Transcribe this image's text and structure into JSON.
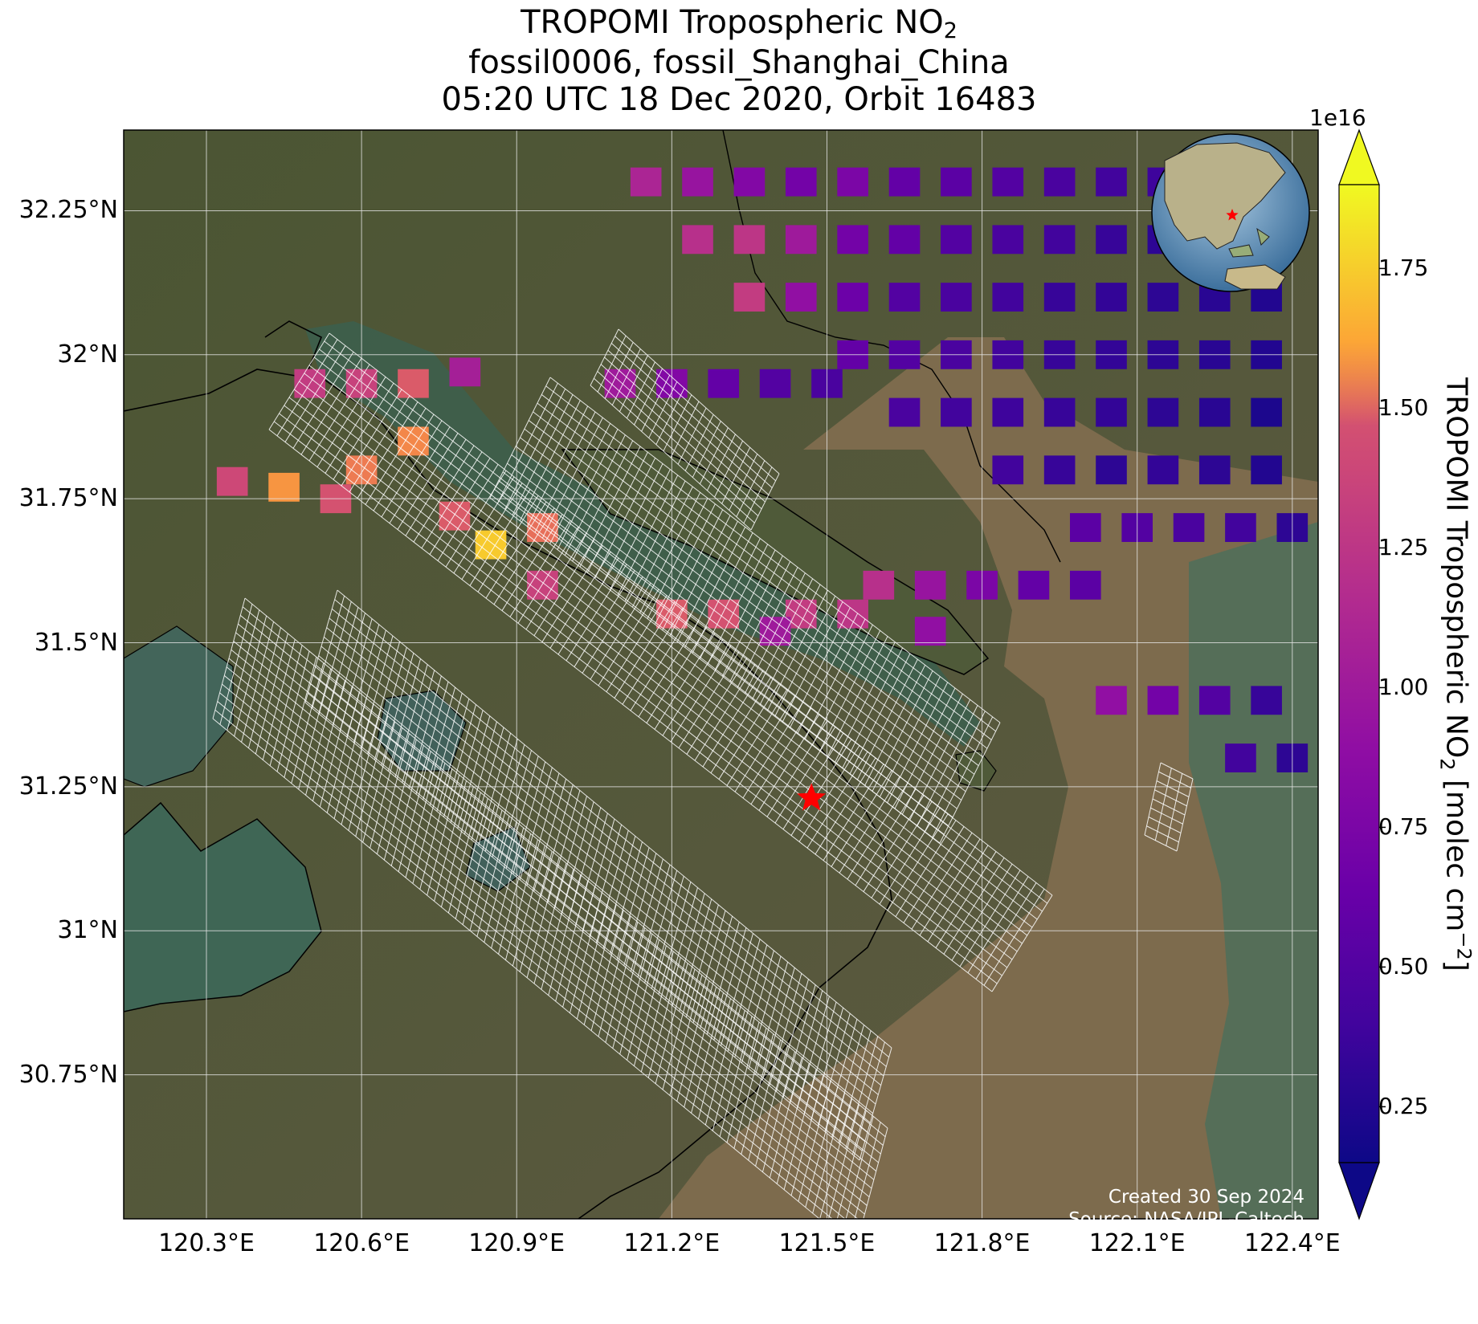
{
  "title": {
    "product": "TROPOMI Tropospheric NO",
    "product_sub": "2",
    "site": "fossil0006, fossil_Shanghai_China",
    "time": "05:20 UTC 18 Dec 2020, Orbit 16483"
  },
  "axes": {
    "lat_ticks": [
      {
        "value": 32.25,
        "label": "32.25°N"
      },
      {
        "value": 32.0,
        "label": "32°N"
      },
      {
        "value": 31.75,
        "label": "31.75°N"
      },
      {
        "value": 31.5,
        "label": "31.5°N"
      },
      {
        "value": 31.25,
        "label": "31.25°N"
      },
      {
        "value": 31.0,
        "label": "31°N"
      },
      {
        "value": 30.75,
        "label": "30.75°N"
      }
    ],
    "lon_ticks": [
      {
        "value": 120.3,
        "label": "120.3°E"
      },
      {
        "value": 120.6,
        "label": "120.6°E"
      },
      {
        "value": 120.9,
        "label": "120.9°E"
      },
      {
        "value": 121.2,
        "label": "121.2°E"
      },
      {
        "value": 121.5,
        "label": "121.5°E"
      },
      {
        "value": 121.8,
        "label": "121.8°E"
      },
      {
        "value": 122.1,
        "label": "122.1°E"
      },
      {
        "value": 122.4,
        "label": "122.4°E"
      }
    ],
    "lat_range": [
      30.5,
      32.4
    ],
    "lon_range": [
      120.2,
      122.45
    ],
    "grid": true
  },
  "colorbar": {
    "multiplier": "1e16",
    "label_main": "TROPOMI Tropospheric NO",
    "label_sub": "2",
    "label_units": " [molec cm",
    "label_sup": "−2",
    "label_end": "]",
    "ticks": [
      {
        "value": 0.25,
        "label": "0.25"
      },
      {
        "value": 0.5,
        "label": "0.50"
      },
      {
        "value": 0.75,
        "label": "0.75"
      },
      {
        "value": 1.0,
        "label": "1.00"
      },
      {
        "value": 1.25,
        "label": "1.25"
      },
      {
        "value": 1.5,
        "label": "1.50"
      },
      {
        "value": 1.75,
        "label": "1.75"
      }
    ],
    "range": [
      0.15,
      1.9
    ],
    "colormap": "plasma",
    "extend": "both"
  },
  "target": {
    "lat": 31.23,
    "lon": 121.47,
    "color": "#ff0000",
    "icon": "star-icon"
  },
  "inset_globe": {
    "center_lat": 31.23,
    "center_lon": 121.47,
    "marker_color": "#ff0000"
  },
  "credits": {
    "created": "Created 30 Sep 2024",
    "source": "Source: NASA/JPL-Caltech"
  },
  "colors": {
    "land": "#4a5230",
    "water": "#3f6655",
    "estuary": "#7c6a4c",
    "grid": "#e6e6e6",
    "target_grid": "#ffffff"
  },
  "chart_data": {
    "type": "heatmap",
    "title": "TROPOMI Tropospheric NO2",
    "xlabel": "",
    "ylabel": "",
    "units": "molec cm-2 (x1e16)",
    "cells": [
      {
        "lat": 32.3,
        "lon": 121.15,
        "value": 1.1
      },
      {
        "lat": 32.3,
        "lon": 121.25,
        "value": 0.95
      },
      {
        "lat": 32.3,
        "lon": 121.35,
        "value": 0.8
      },
      {
        "lat": 32.3,
        "lon": 121.45,
        "value": 0.7
      },
      {
        "lat": 32.3,
        "lon": 121.55,
        "value": 0.75
      },
      {
        "lat": 32.3,
        "lon": 121.65,
        "value": 0.6
      },
      {
        "lat": 32.3,
        "lon": 121.75,
        "value": 0.55
      },
      {
        "lat": 32.3,
        "lon": 121.85,
        "value": 0.5
      },
      {
        "lat": 32.3,
        "lon": 121.95,
        "value": 0.45
      },
      {
        "lat": 32.3,
        "lon": 122.05,
        "value": 0.4
      },
      {
        "lat": 32.3,
        "lon": 122.15,
        "value": 0.38
      },
      {
        "lat": 32.3,
        "lon": 122.25,
        "value": 0.35
      },
      {
        "lat": 32.2,
        "lon": 121.25,
        "value": 1.2
      },
      {
        "lat": 32.2,
        "lon": 121.35,
        "value": 1.25
      },
      {
        "lat": 32.2,
        "lon": 121.45,
        "value": 1.0
      },
      {
        "lat": 32.2,
        "lon": 121.55,
        "value": 0.7
      },
      {
        "lat": 32.2,
        "lon": 121.65,
        "value": 0.6
      },
      {
        "lat": 32.2,
        "lon": 121.75,
        "value": 0.5
      },
      {
        "lat": 32.2,
        "lon": 121.85,
        "value": 0.45
      },
      {
        "lat": 32.2,
        "lon": 121.95,
        "value": 0.4
      },
      {
        "lat": 32.2,
        "lon": 122.05,
        "value": 0.35
      },
      {
        "lat": 32.2,
        "lon": 122.15,
        "value": 0.3
      },
      {
        "lat": 32.2,
        "lon": 122.25,
        "value": 0.33
      },
      {
        "lat": 32.2,
        "lon": 122.35,
        "value": 0.3
      },
      {
        "lat": 32.1,
        "lon": 121.35,
        "value": 1.3
      },
      {
        "lat": 32.1,
        "lon": 121.45,
        "value": 0.9
      },
      {
        "lat": 32.1,
        "lon": 121.55,
        "value": 0.65
      },
      {
        "lat": 32.1,
        "lon": 121.65,
        "value": 0.5
      },
      {
        "lat": 32.1,
        "lon": 121.75,
        "value": 0.45
      },
      {
        "lat": 32.1,
        "lon": 121.85,
        "value": 0.4
      },
      {
        "lat": 32.1,
        "lon": 121.95,
        "value": 0.35
      },
      {
        "lat": 32.1,
        "lon": 122.05,
        "value": 0.33
      },
      {
        "lat": 32.1,
        "lon": 122.15,
        "value": 0.3
      },
      {
        "lat": 32.1,
        "lon": 122.25,
        "value": 0.28
      },
      {
        "lat": 32.1,
        "lon": 122.35,
        "value": 0.25
      },
      {
        "lat": 32.0,
        "lon": 121.55,
        "value": 0.6
      },
      {
        "lat": 32.0,
        "lon": 121.65,
        "value": 0.5
      },
      {
        "lat": 32.0,
        "lon": 121.75,
        "value": 0.45
      },
      {
        "lat": 32.0,
        "lon": 121.85,
        "value": 0.4
      },
      {
        "lat": 32.0,
        "lon": 121.95,
        "value": 0.35
      },
      {
        "lat": 32.0,
        "lon": 122.05,
        "value": 0.33
      },
      {
        "lat": 32.0,
        "lon": 122.15,
        "value": 0.3
      },
      {
        "lat": 32.0,
        "lon": 122.25,
        "value": 0.28
      },
      {
        "lat": 32.0,
        "lon": 122.35,
        "value": 0.25
      },
      {
        "lat": 31.95,
        "lon": 121.1,
        "value": 1.0
      },
      {
        "lat": 31.95,
        "lon": 121.2,
        "value": 0.8
      },
      {
        "lat": 31.95,
        "lon": 121.3,
        "value": 0.6
      },
      {
        "lat": 31.95,
        "lon": 121.4,
        "value": 0.5
      },
      {
        "lat": 31.95,
        "lon": 121.5,
        "value": 0.45
      },
      {
        "lat": 31.9,
        "lon": 121.65,
        "value": 0.45
      },
      {
        "lat": 31.9,
        "lon": 121.75,
        "value": 0.4
      },
      {
        "lat": 31.9,
        "lon": 121.85,
        "value": 0.38
      },
      {
        "lat": 31.9,
        "lon": 121.95,
        "value": 0.35
      },
      {
        "lat": 31.9,
        "lon": 122.05,
        "value": 0.33
      },
      {
        "lat": 31.9,
        "lon": 122.15,
        "value": 0.3
      },
      {
        "lat": 31.9,
        "lon": 122.25,
        "value": 0.28
      },
      {
        "lat": 31.9,
        "lon": 122.35,
        "value": 0.22
      },
      {
        "lat": 31.8,
        "lon": 121.85,
        "value": 0.4
      },
      {
        "lat": 31.8,
        "lon": 121.95,
        "value": 0.35
      },
      {
        "lat": 31.8,
        "lon": 122.05,
        "value": 0.3
      },
      {
        "lat": 31.8,
        "lon": 122.15,
        "value": 0.33
      },
      {
        "lat": 31.8,
        "lon": 122.25,
        "value": 0.3
      },
      {
        "lat": 31.8,
        "lon": 122.35,
        "value": 0.25
      },
      {
        "lat": 31.7,
        "lon": 122.0,
        "value": 0.55
      },
      {
        "lat": 31.7,
        "lon": 122.1,
        "value": 0.5
      },
      {
        "lat": 31.7,
        "lon": 122.2,
        "value": 0.45
      },
      {
        "lat": 31.7,
        "lon": 122.3,
        "value": 0.4
      },
      {
        "lat": 31.7,
        "lon": 122.4,
        "value": 0.3
      },
      {
        "lat": 31.6,
        "lon": 121.6,
        "value": 1.2
      },
      {
        "lat": 31.6,
        "lon": 121.7,
        "value": 0.95
      },
      {
        "lat": 31.6,
        "lon": 121.8,
        "value": 0.75
      },
      {
        "lat": 31.6,
        "lon": 121.9,
        "value": 0.6
      },
      {
        "lat": 31.6,
        "lon": 122.0,
        "value": 0.55
      },
      {
        "lat": 31.55,
        "lon": 121.2,
        "value": 1.5
      },
      {
        "lat": 31.55,
        "lon": 121.3,
        "value": 1.45
      },
      {
        "lat": 31.55,
        "lon": 121.45,
        "value": 1.3
      },
      {
        "lat": 31.55,
        "lon": 121.55,
        "value": 1.25
      },
      {
        "lat": 31.52,
        "lon": 121.4,
        "value": 1.0
      },
      {
        "lat": 31.52,
        "lon": 121.7,
        "value": 0.9
      },
      {
        "lat": 31.4,
        "lon": 122.05,
        "value": 0.9
      },
      {
        "lat": 31.4,
        "lon": 122.15,
        "value": 0.7
      },
      {
        "lat": 31.4,
        "lon": 122.25,
        "value": 0.5
      },
      {
        "lat": 31.4,
        "lon": 122.35,
        "value": 0.35
      },
      {
        "lat": 31.3,
        "lon": 122.3,
        "value": 0.4
      },
      {
        "lat": 31.3,
        "lon": 122.4,
        "value": 0.3
      },
      {
        "lat": 31.95,
        "lon": 120.5,
        "value": 1.3
      },
      {
        "lat": 31.95,
        "lon": 120.6,
        "value": 1.35
      },
      {
        "lat": 31.95,
        "lon": 120.7,
        "value": 1.5
      },
      {
        "lat": 31.97,
        "lon": 120.8,
        "value": 1.05
      },
      {
        "lat": 31.85,
        "lon": 120.7,
        "value": 1.7
      },
      {
        "lat": 31.8,
        "lon": 120.6,
        "value": 1.65
      },
      {
        "lat": 31.78,
        "lon": 120.35,
        "value": 1.4
      },
      {
        "lat": 31.77,
        "lon": 120.45,
        "value": 1.75
      },
      {
        "lat": 31.75,
        "lon": 120.55,
        "value": 1.45
      },
      {
        "lat": 31.72,
        "lon": 120.78,
        "value": 1.5
      },
      {
        "lat": 31.67,
        "lon": 120.85,
        "value": 1.85
      },
      {
        "lat": 31.7,
        "lon": 120.95,
        "value": 1.6
      },
      {
        "lat": 31.6,
        "lon": 120.95,
        "value": 1.35
      }
    ]
  }
}
